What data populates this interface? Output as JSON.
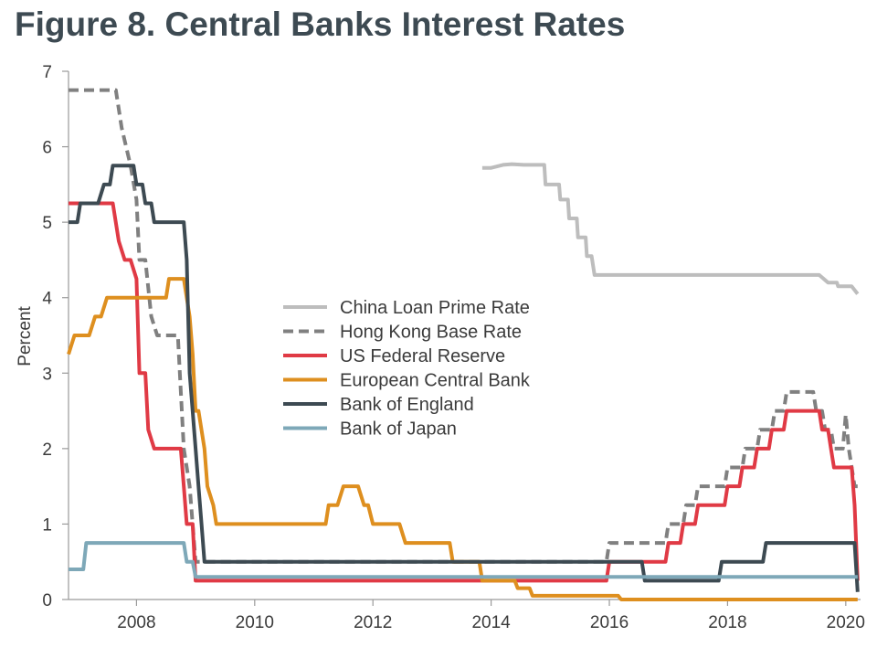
{
  "title": "Figure 8. Central Banks Interest Rates",
  "chart_data": {
    "type": "line",
    "title": "Figure 8. Central Banks Interest Rates",
    "xlabel": "",
    "ylabel": "Percent",
    "xlim": [
      2006.85,
      2020.25
    ],
    "ylim": [
      0,
      7
    ],
    "x_ticks": [
      2008,
      2010,
      2012,
      2014,
      2016,
      2018,
      2020
    ],
    "y_ticks": [
      0,
      1,
      2,
      3,
      4,
      5,
      6,
      7
    ],
    "grid": false,
    "legend_position": "center-left",
    "series": [
      {
        "name": "China Loan Prime Rate",
        "color": "#bdbdbd",
        "dash": "solid",
        "points": [
          [
            2013.85,
            5.72
          ],
          [
            2014.0,
            5.72
          ],
          [
            2014.2,
            5.76
          ],
          [
            2014.35,
            5.77
          ],
          [
            2014.55,
            5.76
          ],
          [
            2014.9,
            5.76
          ],
          [
            2014.92,
            5.5
          ],
          [
            2015.15,
            5.5
          ],
          [
            2015.17,
            5.3
          ],
          [
            2015.3,
            5.3
          ],
          [
            2015.32,
            5.05
          ],
          [
            2015.45,
            5.05
          ],
          [
            2015.47,
            4.8
          ],
          [
            2015.6,
            4.8
          ],
          [
            2015.62,
            4.55
          ],
          [
            2015.7,
            4.55
          ],
          [
            2015.75,
            4.3
          ],
          [
            2019.35,
            4.3
          ],
          [
            2019.55,
            4.3
          ],
          [
            2019.7,
            4.2
          ],
          [
            2019.85,
            4.2
          ],
          [
            2019.87,
            4.15
          ],
          [
            2020.1,
            4.15
          ],
          [
            2020.2,
            4.05
          ]
        ]
      },
      {
        "name": "Hong Kong Base Rate",
        "color": "#808080",
        "dash": "dashed",
        "points": [
          [
            2006.85,
            6.75
          ],
          [
            2007.65,
            6.75
          ],
          [
            2007.75,
            6.25
          ],
          [
            2007.9,
            5.75
          ],
          [
            2008.0,
            5.3
          ],
          [
            2008.05,
            4.5
          ],
          [
            2008.15,
            4.5
          ],
          [
            2008.25,
            3.75
          ],
          [
            2008.35,
            3.5
          ],
          [
            2008.7,
            3.5
          ],
          [
            2008.8,
            2.0
          ],
          [
            2008.9,
            1.5
          ],
          [
            2009.0,
            0.5
          ],
          [
            2015.95,
            0.5
          ],
          [
            2016.0,
            0.75
          ],
          [
            2016.95,
            0.75
          ],
          [
            2017.0,
            1.0
          ],
          [
            2017.25,
            1.0
          ],
          [
            2017.3,
            1.25
          ],
          [
            2017.45,
            1.25
          ],
          [
            2017.5,
            1.5
          ],
          [
            2017.95,
            1.5
          ],
          [
            2018.0,
            1.75
          ],
          [
            2018.25,
            1.75
          ],
          [
            2018.3,
            2.0
          ],
          [
            2018.5,
            2.0
          ],
          [
            2018.55,
            2.25
          ],
          [
            2018.75,
            2.25
          ],
          [
            2018.8,
            2.5
          ],
          [
            2018.95,
            2.5
          ],
          [
            2019.0,
            2.75
          ],
          [
            2019.45,
            2.75
          ],
          [
            2019.5,
            2.5
          ],
          [
            2019.6,
            2.5
          ],
          [
            2019.65,
            2.25
          ],
          [
            2019.75,
            2.25
          ],
          [
            2019.8,
            2.0
          ],
          [
            2019.95,
            2.0
          ],
          [
            2020.0,
            2.45
          ],
          [
            2020.05,
            2.0
          ],
          [
            2020.15,
            1.5
          ],
          [
            2020.2,
            1.5
          ]
        ]
      },
      {
        "name": "US Federal Reserve",
        "color": "#e03a45",
        "dash": "solid",
        "points": [
          [
            2006.85,
            5.25
          ],
          [
            2007.6,
            5.25
          ],
          [
            2007.7,
            4.75
          ],
          [
            2007.8,
            4.5
          ],
          [
            2007.9,
            4.5
          ],
          [
            2008.0,
            4.25
          ],
          [
            2008.05,
            3.0
          ],
          [
            2008.15,
            3.0
          ],
          [
            2008.2,
            2.25
          ],
          [
            2008.3,
            2.0
          ],
          [
            2008.75,
            2.0
          ],
          [
            2008.8,
            1.5
          ],
          [
            2008.85,
            1.0
          ],
          [
            2008.95,
            1.0
          ],
          [
            2009.0,
            0.25
          ],
          [
            2015.95,
            0.25
          ],
          [
            2016.0,
            0.5
          ],
          [
            2016.95,
            0.5
          ],
          [
            2017.0,
            0.75
          ],
          [
            2017.2,
            0.75
          ],
          [
            2017.25,
            1.0
          ],
          [
            2017.45,
            1.0
          ],
          [
            2017.5,
            1.25
          ],
          [
            2017.95,
            1.25
          ],
          [
            2018.0,
            1.5
          ],
          [
            2018.2,
            1.5
          ],
          [
            2018.25,
            1.75
          ],
          [
            2018.45,
            1.75
          ],
          [
            2018.5,
            2.0
          ],
          [
            2018.7,
            2.0
          ],
          [
            2018.75,
            2.25
          ],
          [
            2018.95,
            2.25
          ],
          [
            2019.0,
            2.5
          ],
          [
            2019.55,
            2.5
          ],
          [
            2019.6,
            2.25
          ],
          [
            2019.7,
            2.25
          ],
          [
            2019.75,
            2.0
          ],
          [
            2019.8,
            1.75
          ],
          [
            2020.1,
            1.75
          ],
          [
            2020.15,
            1.25
          ],
          [
            2020.2,
            0.25
          ]
        ]
      },
      {
        "name": "European Central Bank",
        "color": "#de8f1f",
        "dash": "solid",
        "points": [
          [
            2006.85,
            3.25
          ],
          [
            2006.95,
            3.5
          ],
          [
            2007.2,
            3.5
          ],
          [
            2007.3,
            3.75
          ],
          [
            2007.4,
            3.75
          ],
          [
            2007.5,
            4.0
          ],
          [
            2008.5,
            4.0
          ],
          [
            2008.55,
            4.25
          ],
          [
            2008.8,
            4.25
          ],
          [
            2008.9,
            3.75
          ],
          [
            2008.95,
            3.25
          ],
          [
            2009.0,
            2.5
          ],
          [
            2009.05,
            2.5
          ],
          [
            2009.15,
            2.0
          ],
          [
            2009.2,
            1.5
          ],
          [
            2009.3,
            1.25
          ],
          [
            2009.35,
            1.0
          ],
          [
            2011.2,
            1.0
          ],
          [
            2011.25,
            1.25
          ],
          [
            2011.4,
            1.25
          ],
          [
            2011.5,
            1.5
          ],
          [
            2011.75,
            1.5
          ],
          [
            2011.85,
            1.25
          ],
          [
            2011.92,
            1.25
          ],
          [
            2012.0,
            1.0
          ],
          [
            2012.45,
            1.0
          ],
          [
            2012.55,
            0.75
          ],
          [
            2013.3,
            0.75
          ],
          [
            2013.35,
            0.5
          ],
          [
            2013.8,
            0.5
          ],
          [
            2013.85,
            0.25
          ],
          [
            2014.4,
            0.25
          ],
          [
            2014.45,
            0.15
          ],
          [
            2014.65,
            0.15
          ],
          [
            2014.7,
            0.05
          ],
          [
            2016.15,
            0.05
          ],
          [
            2016.2,
            0.0
          ],
          [
            2020.2,
            0.0
          ]
        ]
      },
      {
        "name": "Bank of England",
        "color": "#3d4a52",
        "dash": "solid",
        "points": [
          [
            2006.85,
            5.0
          ],
          [
            2007.0,
            5.0
          ],
          [
            2007.05,
            5.25
          ],
          [
            2007.35,
            5.25
          ],
          [
            2007.45,
            5.5
          ],
          [
            2007.55,
            5.5
          ],
          [
            2007.6,
            5.75
          ],
          [
            2007.95,
            5.75
          ],
          [
            2008.0,
            5.5
          ],
          [
            2008.1,
            5.5
          ],
          [
            2008.15,
            5.25
          ],
          [
            2008.25,
            5.25
          ],
          [
            2008.3,
            5.0
          ],
          [
            2008.8,
            5.0
          ],
          [
            2008.85,
            4.5
          ],
          [
            2008.9,
            3.0
          ],
          [
            2009.0,
            2.0
          ],
          [
            2009.05,
            1.5
          ],
          [
            2009.1,
            1.0
          ],
          [
            2009.15,
            0.5
          ],
          [
            2016.55,
            0.5
          ],
          [
            2016.6,
            0.25
          ],
          [
            2017.85,
            0.25
          ],
          [
            2017.9,
            0.5
          ],
          [
            2018.6,
            0.5
          ],
          [
            2018.65,
            0.75
          ],
          [
            2020.15,
            0.75
          ],
          [
            2020.2,
            0.1
          ]
        ]
      },
      {
        "name": "Bank of Japan",
        "color": "#7ea8b8",
        "dash": "solid",
        "points": [
          [
            2006.85,
            0.4
          ],
          [
            2007.1,
            0.4
          ],
          [
            2007.15,
            0.75
          ],
          [
            2008.8,
            0.75
          ],
          [
            2008.85,
            0.5
          ],
          [
            2008.95,
            0.5
          ],
          [
            2009.0,
            0.3
          ],
          [
            2020.2,
            0.3
          ]
        ]
      }
    ]
  }
}
